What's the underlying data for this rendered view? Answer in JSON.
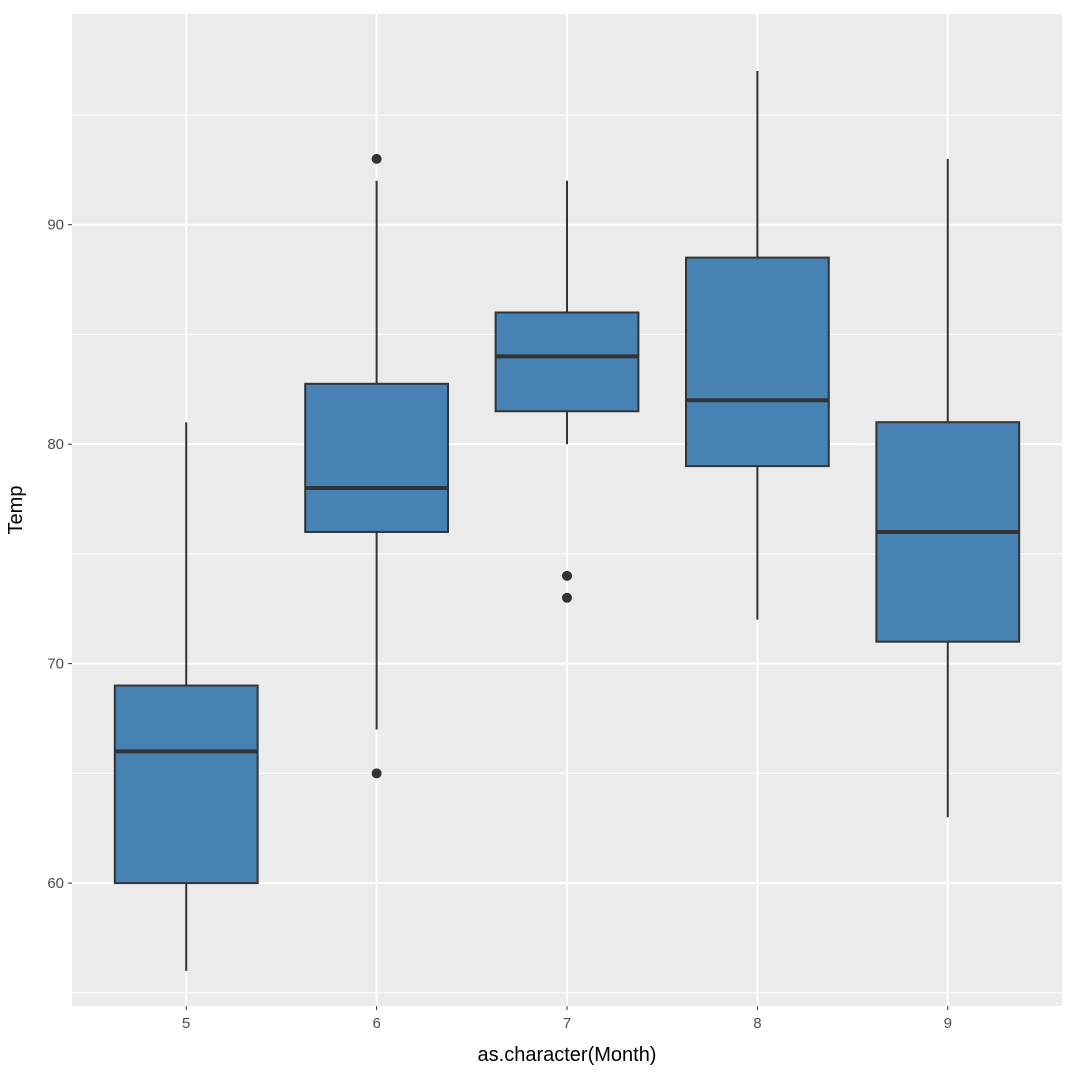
{
  "chart_data": {
    "type": "boxplot",
    "title": "",
    "xlabel": "as.character(Month)",
    "ylabel": "Temp",
    "categories": [
      "5",
      "6",
      "7",
      "8",
      "9"
    ],
    "ylim": [
      54.4,
      99.6
    ],
    "yticks": [
      60,
      70,
      80,
      90
    ],
    "grid": true,
    "legend": "none",
    "colors": {
      "panel_background": "#ebebeb",
      "grid_line": "#ffffff",
      "box_fill": "#4682b4",
      "box_outline": "#333333",
      "outlier": "#333333"
    },
    "boxes": [
      {
        "category": "5",
        "lower_whisker": 56,
        "q1": 60,
        "median": 66,
        "q3": 69,
        "upper_whisker": 81,
        "outliers": []
      },
      {
        "category": "6",
        "lower_whisker": 67,
        "q1": 76,
        "median": 78,
        "q3": 82.75,
        "upper_whisker": 92,
        "outliers": [
          93,
          65
        ]
      },
      {
        "category": "7",
        "lower_whisker": 80,
        "q1": 81.5,
        "median": 84,
        "q3": 86,
        "upper_whisker": 92,
        "outliers": [
          74,
          73
        ]
      },
      {
        "category": "8",
        "lower_whisker": 72,
        "q1": 79,
        "median": 82,
        "q3": 88.5,
        "upper_whisker": 97,
        "outliers": []
      },
      {
        "category": "9",
        "lower_whisker": 63,
        "q1": 71,
        "median": 76,
        "q3": 81,
        "upper_whisker": 93,
        "outliers": []
      }
    ]
  }
}
